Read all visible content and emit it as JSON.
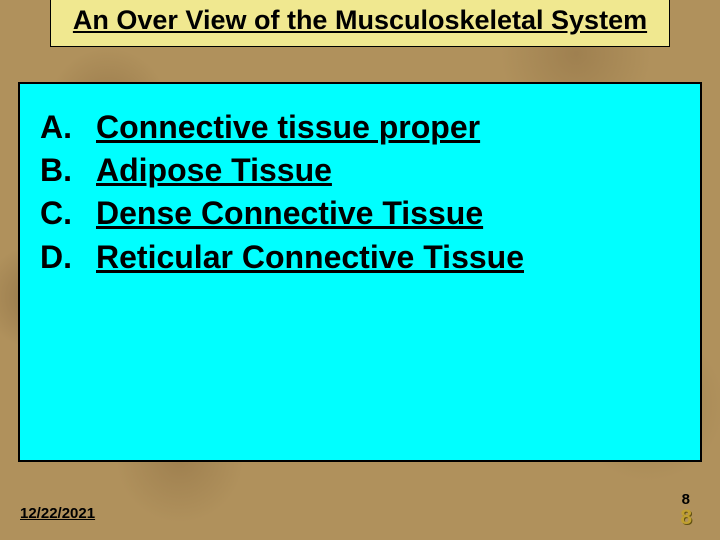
{
  "title": "An Over View of the Musculoskeletal System",
  "items": [
    {
      "marker": "A.",
      "text": "Connective tissue proper"
    },
    {
      "marker": "B.",
      "text": "Adipose Tissue"
    },
    {
      "marker": "C.",
      "text": "Dense Connective Tissue"
    },
    {
      "marker": "D.",
      "text": "Reticular Connective Tissue"
    }
  ],
  "date": "12/22/2021",
  "page_small": "8",
  "page_number": "8",
  "colors": {
    "title_bg": "#f0e890",
    "content_bg": "#00ffff",
    "body_bg": "#b0915c",
    "page_num_color": "#c0a030"
  },
  "typography": {
    "title_fontsize": 27,
    "item_fontsize": 32,
    "date_fontsize": 15,
    "page_fontsize": 21
  }
}
